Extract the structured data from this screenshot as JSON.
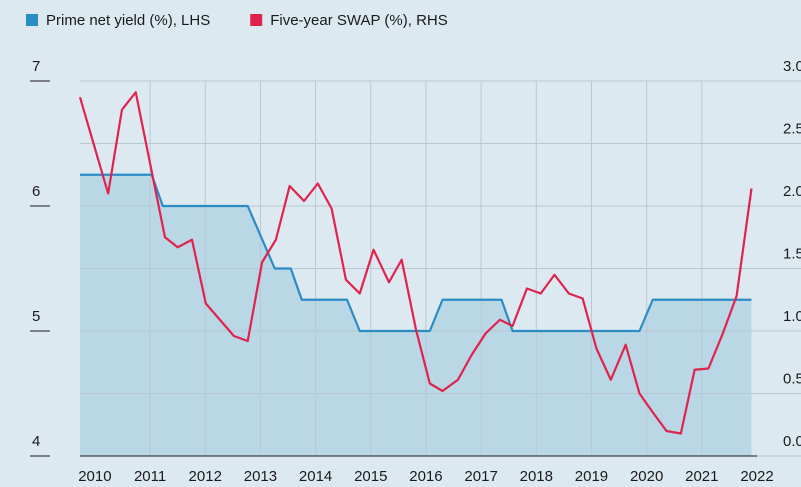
{
  "chart_data": {
    "type": "line",
    "xlim": [
      2009.73,
      2022.0
    ],
    "xticks": [
      2010,
      2011,
      2012,
      2013,
      2014,
      2015,
      2016,
      2017,
      2018,
      2019,
      2020,
      2021,
      2022
    ],
    "ylim": [
      4,
      7
    ],
    "yticks": [
      4,
      5,
      6,
      7
    ],
    "y2lim": [
      0,
      3
    ],
    "y2ticks": [
      {
        "value": 0,
        "label": "0.0"
      },
      {
        "value": 0.5,
        "label": "0.5"
      },
      {
        "value": 1,
        "label": "1.0"
      },
      {
        "value": 1.5,
        "label": "1.5"
      },
      {
        "value": 2,
        "label": "2.0"
      },
      {
        "value": 2.5,
        "label": "2.5"
      },
      {
        "value": 3,
        "label": "3.0"
      }
    ],
    "grid": true,
    "series": [
      {
        "name": "Prime net yield (%), LHS",
        "color": "#2b8cc4",
        "fill": "#b9d7e5",
        "x": [
          2009.73,
          2011.03,
          2011.23,
          2012.77,
          2013.26,
          2013.55,
          2013.75,
          2014.57,
          2014.8,
          2016.07,
          2016.3,
          2017.37,
          2017.57,
          2019.87,
          2020.11,
          2021.9
        ],
        "values": [
          6.25,
          6.25,
          6.0,
          6.0,
          5.5,
          5.5,
          5.25,
          5.25,
          5.0,
          5.0,
          5.25,
          5.25,
          5.0,
          5.0,
          5.25,
          5.25
        ]
      },
      {
        "name": "Five-year SWAP (%), RHS",
        "color": "#e0234e",
        "axis": "y2",
        "x": [
          2009.73,
          2010.24,
          2010.49,
          2010.74,
          2011.27,
          2011.5,
          2011.76,
          2012.01,
          2012.52,
          2012.77,
          2013.03,
          2013.28,
          2013.53,
          2013.79,
          2014.04,
          2014.29,
          2014.55,
          2014.8,
          2015.05,
          2015.33,
          2015.56,
          2015.82,
          2016.07,
          2016.3,
          2016.58,
          2016.83,
          2017.08,
          2017.34,
          2017.57,
          2017.83,
          2018.08,
          2018.33,
          2018.59,
          2018.84,
          2019.09,
          2019.35,
          2019.62,
          2019.87,
          2020.11,
          2020.36,
          2020.62,
          2020.87,
          2021.12,
          2021.38,
          2021.63,
          2021.9
        ],
        "values": [
          2.87,
          2.1,
          2.77,
          2.91,
          1.75,
          1.67,
          1.73,
          1.22,
          0.96,
          0.92,
          1.55,
          1.73,
          2.16,
          2.04,
          2.18,
          1.98,
          1.41,
          1.3,
          1.65,
          1.39,
          1.57,
          1.01,
          0.58,
          0.52,
          0.61,
          0.81,
          0.98,
          1.09,
          1.04,
          1.34,
          1.3,
          1.45,
          1.3,
          1.26,
          0.86,
          0.61,
          0.89,
          0.5,
          0.35,
          0.2,
          0.18,
          0.69,
          0.7,
          0.98,
          1.28,
          2.14
        ]
      }
    ]
  }
}
